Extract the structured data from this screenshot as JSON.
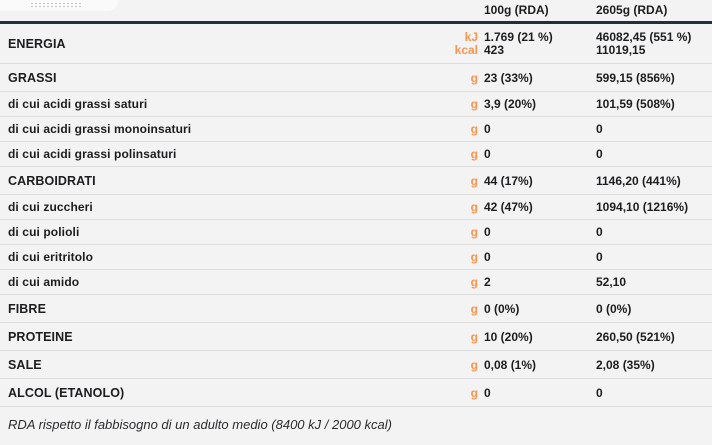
{
  "colors": {
    "accent_orange": "#f79552",
    "header_border": "#242e3c",
    "divider": "#dddddd",
    "page_background": "#f3f3f4",
    "text": "#1d1d1f"
  },
  "table": {
    "column_headers": {
      "per_100g": "100g (RDA)",
      "per_portion": "2605g (RDA)"
    },
    "rows": [
      {
        "label": "ENERGIA",
        "section": true,
        "lines": [
          {
            "unit": "kJ",
            "col1": "1.769 (21 %)",
            "col2": "46082,45 (551 %)"
          },
          {
            "unit": "kcal",
            "col1": "423",
            "col2": "11019,15"
          }
        ]
      },
      {
        "label": "GRASSI",
        "section": true,
        "unit": "g",
        "col1": "23 (33%)",
        "col2": "599,15 (856%)"
      },
      {
        "label": "di cui acidi grassi saturi",
        "section": false,
        "unit": "g",
        "col1": "3,9 (20%)",
        "col2": "101,59 (508%)"
      },
      {
        "label": "di cui acidi grassi monoinsaturi",
        "section": false,
        "unit": "g",
        "col1": "0",
        "col2": "0"
      },
      {
        "label": "di cui acidi grassi polinsaturi",
        "section": false,
        "unit": "g",
        "col1": "0",
        "col2": "0"
      },
      {
        "label": "CARBOIDRATI",
        "section": true,
        "unit": "g",
        "col1": "44 (17%)",
        "col2": "1146,20 (441%)"
      },
      {
        "label": "di cui zuccheri",
        "section": false,
        "unit": "g",
        "col1": "42 (47%)",
        "col2": "1094,10 (1216%)"
      },
      {
        "label": "di cui polioli",
        "section": false,
        "unit": "g",
        "col1": "0",
        "col2": "0"
      },
      {
        "label": "di cui eritritolo",
        "section": false,
        "unit": "g",
        "col1": "0",
        "col2": "0"
      },
      {
        "label": "di cui amido",
        "section": false,
        "unit": "g",
        "col1": "2",
        "col2": "52,10"
      },
      {
        "label": "FIBRE",
        "section": true,
        "unit": "g",
        "col1": "0 (0%)",
        "col2": "0 (0%)"
      },
      {
        "label": "PROTEINE",
        "section": true,
        "unit": "g",
        "col1": "10 (20%)",
        "col2": "260,50 (521%)"
      },
      {
        "label": "SALE",
        "section": true,
        "unit": "g",
        "col1": "0,08 (1%)",
        "col2": "2,08 (35%)"
      },
      {
        "label": "ALCOL (ETANOLO)",
        "section": true,
        "unit": "g",
        "col1": "0",
        "col2": "0"
      }
    ],
    "footer_note": "RDA rispetto il fabbisogno di un adulto medio (8400 kJ / 2000 kcal)"
  }
}
